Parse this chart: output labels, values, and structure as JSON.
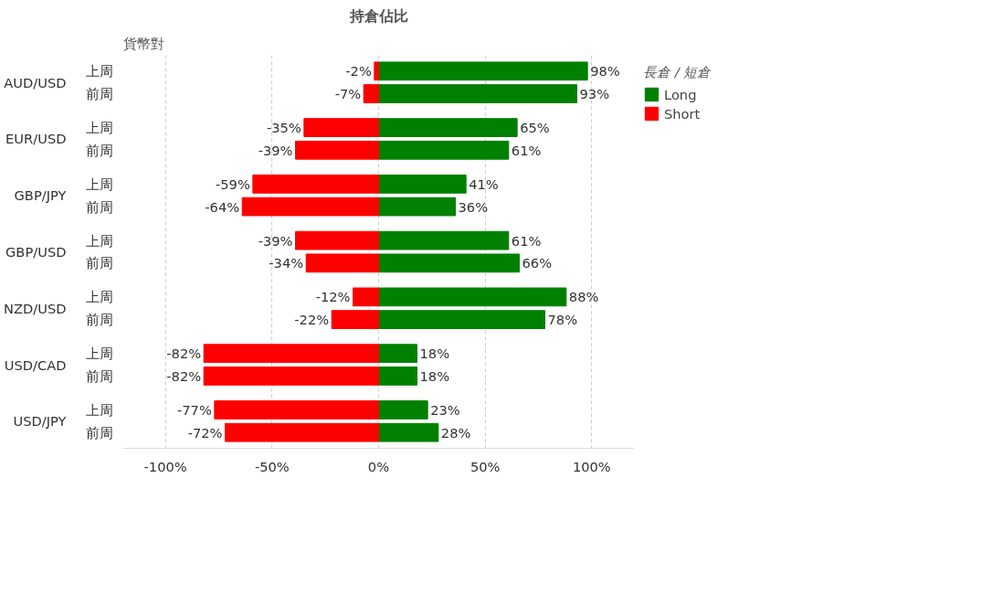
{
  "chart_data": {
    "type": "bar",
    "orientation": "horizontal",
    "title": "持倉佔比",
    "ylabel": "貨幣對",
    "legend_title": "長倉 / 短倉",
    "categories": [
      "上周",
      "前周",
      "上周",
      "前周",
      "上周",
      "前周",
      "上周",
      "前周",
      "上周",
      "前周",
      "上周",
      "前周",
      "上周",
      "前周"
    ],
    "annotations": [
      "AUD/USD",
      "EUR/USD",
      "GBP/JPY",
      "GBP/USD",
      "NZD/USD",
      "USD/CAD",
      "USD/JPY"
    ],
    "series": [
      {
        "name": "Long",
        "color": "#008000",
        "values": [
          98,
          93,
          65,
          61,
          41,
          36,
          61,
          66,
          88,
          78,
          18,
          18,
          23,
          28
        ],
        "value_labels": [
          "98%",
          "93%",
          "65%",
          "61%",
          "41%",
          "36%",
          "61%",
          "66%",
          "88%",
          "78%",
          "18%",
          "18%",
          "23%",
          "28%"
        ]
      },
      {
        "name": "Short",
        "color": "#ff0000",
        "values": [
          -2,
          -7,
          -35,
          -39,
          -59,
          -64,
          -39,
          -34,
          -12,
          -22,
          -82,
          -82,
          -77,
          -72
        ],
        "value_labels": [
          "-2%",
          "-7%",
          "-35%",
          "-39%",
          "-59%",
          "-64%",
          "-39%",
          "-34%",
          "-12%",
          "-22%",
          "-82%",
          "-82%",
          "-77%",
          "-72%"
        ]
      }
    ],
    "xlim": [
      -120,
      120
    ],
    "xticks": [
      {
        "value": -100,
        "label": "-100%"
      },
      {
        "value": -50,
        "label": "-50%"
      },
      {
        "value": 0,
        "label": "0%"
      },
      {
        "value": 50,
        "label": "50%"
      },
      {
        "value": 100,
        "label": "100%"
      }
    ],
    "grid": "x",
    "legend": "top right",
    "stacked": true
  }
}
